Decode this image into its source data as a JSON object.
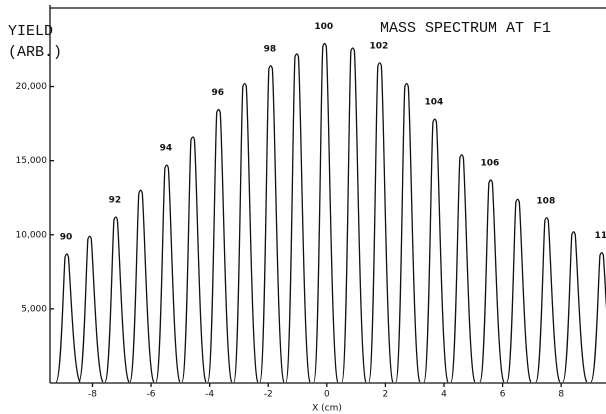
{
  "chart_data": {
    "type": "line",
    "title": "MASS SPECTRUM AT F1",
    "y_label": [
      "YIELD",
      "(ARB.)"
    ],
    "x_label": "X (cm)",
    "x": [
      -8.87,
      -8.09,
      -7.2,
      -6.35,
      -5.46,
      -4.57,
      -3.69,
      -2.8,
      -1.91,
      -1.02,
      -0.07,
      0.89,
      1.81,
      2.73,
      3.69,
      4.61,
      5.6,
      6.52,
      7.51,
      8.43,
      9.39
    ],
    "values": [
      8900,
      10100,
      11400,
      13200,
      14900,
      16800,
      18650,
      20400,
      21600,
      22400,
      23100,
      22800,
      21800,
      20400,
      18000,
      15600,
      13900,
      12600,
      11350,
      10400,
      9000
    ],
    "peak_labels": [
      "90",
      null,
      "92",
      null,
      "94",
      null,
      "96",
      null,
      "98",
      null,
      "100",
      null,
      "102",
      null,
      "104",
      null,
      "106",
      null,
      "108",
      null,
      "11"
    ],
    "color": "#111111",
    "xlim": [
      -9.45,
      9.53
    ],
    "ylim": [
      0,
      25500
    ],
    "xticks": [
      -8,
      -6,
      -4,
      -2,
      0,
      2,
      4,
      6,
      8
    ],
    "yticks": [
      {
        "value": 5000,
        "label": "5,000"
      },
      {
        "value": 10000,
        "label": "10,000"
      },
      {
        "value": 15000,
        "label": "15,000"
      },
      {
        "value": 20000,
        "label": "20,000"
      }
    ]
  }
}
